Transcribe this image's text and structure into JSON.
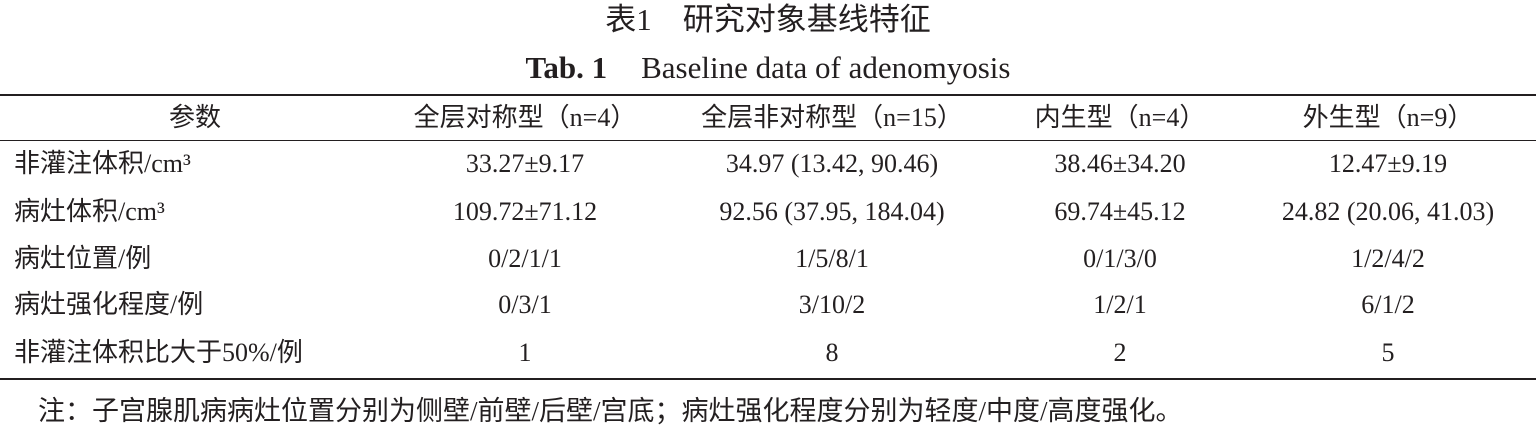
{
  "title": {
    "zh": "表1　研究对象基线特征",
    "en_label": "Tab. 1",
    "en_text": "Baseline data of adenomyosis"
  },
  "table": {
    "header": [
      "参数",
      "全层对称型（n=4）",
      "全层非对称型（n=15）",
      "内生型（n=4）",
      "外生型（n=9）"
    ],
    "rows": [
      [
        "非灌注体积/cm³",
        "33.27±9.17",
        "34.97 (13.42, 90.46)",
        "38.46±34.20",
        "12.47±9.19"
      ],
      [
        "病灶体积/cm³",
        "109.72±71.12",
        "92.56 (37.95, 184.04)",
        "69.74±45.12",
        "24.82 (20.06, 41.03)"
      ],
      [
        "病灶位置/例",
        "0/2/1/1",
        "1/5/8/1",
        "0/1/3/0",
        "1/2/4/2"
      ],
      [
        "病灶强化程度/例",
        "0/3/1",
        "3/10/2",
        "1/2/1",
        "6/1/2"
      ],
      [
        "非灌注体积比大于50%/例",
        "1",
        "8",
        "2",
        "5"
      ]
    ]
  },
  "note": "注：子宫腺肌病病灶位置分别为侧壁/前壁/后壁/宫底；病灶强化程度分别为轻度/中度/高度强化。"
}
